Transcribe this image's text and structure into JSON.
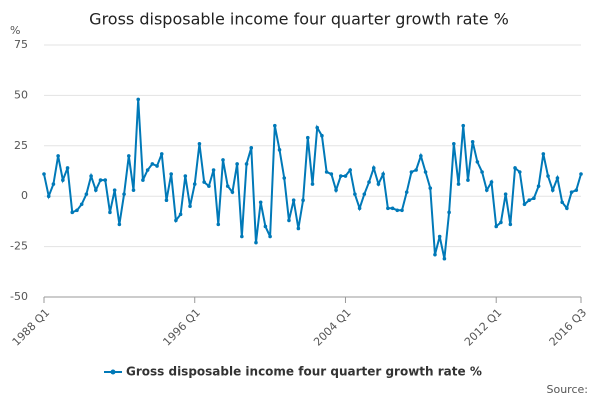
{
  "chart_data": {
    "type": "line",
    "title": "Gross disposable income four quarter growth rate %",
    "y_label": "%",
    "source": "Source:",
    "categories": [
      "1988 Q1",
      null,
      null,
      null,
      null,
      null,
      null,
      null,
      null,
      null,
      null,
      null,
      null,
      null,
      null,
      null,
      null,
      null,
      null,
      null,
      null,
      null,
      null,
      null,
      null,
      null,
      null,
      null,
      null,
      null,
      null,
      null,
      "1996 Q1",
      null,
      null,
      null,
      null,
      null,
      null,
      null,
      null,
      null,
      null,
      null,
      null,
      null,
      null,
      null,
      null,
      null,
      null,
      null,
      null,
      null,
      null,
      null,
      null,
      null,
      null,
      null,
      null,
      null,
      null,
      null,
      "2004 Q1",
      null,
      null,
      null,
      null,
      null,
      null,
      null,
      null,
      null,
      null,
      null,
      null,
      null,
      null,
      null,
      null,
      null,
      null,
      null,
      null,
      null,
      null,
      null,
      null,
      null,
      null,
      null,
      null,
      null,
      null,
      null,
      "2012 Q1",
      null,
      null,
      null,
      null,
      null,
      null,
      null,
      null,
      null,
      null,
      null,
      null,
      null,
      null,
      null,
      null,
      null,
      "2016 Q3"
    ],
    "series": [
      {
        "name": "Gross disposable income four quarter growth rate %",
        "color": "#0079b8",
        "values": [
          11,
          0,
          6,
          20,
          8,
          14,
          -8,
          -7,
          -4,
          1,
          10,
          3,
          8,
          8,
          -8,
          3,
          -14,
          1,
          20,
          3,
          48,
          8,
          13,
          16,
          15,
          21,
          -2,
          11,
          -12,
          -9,
          10,
          -5,
          6,
          26,
          7,
          5,
          13,
          -14,
          18,
          5,
          2,
          16,
          -20,
          16,
          24,
          -23,
          -3,
          -15,
          -20,
          35,
          23,
          9,
          -12,
          -2,
          -16,
          -2,
          29,
          6,
          34,
          30,
          12,
          11,
          3,
          10,
          10,
          13,
          1,
          -6,
          1,
          7,
          14,
          6,
          11,
          -6,
          -6,
          -7,
          -7,
          2,
          12,
          13,
          20,
          12,
          4,
          -29,
          -20,
          -31,
          -8,
          26,
          6,
          35,
          8,
          27,
          17,
          12,
          3,
          7,
          -15,
          -13,
          1,
          -14,
          14,
          12,
          -4,
          -2,
          -1,
          5,
          21,
          10,
          3,
          9,
          -3,
          -6,
          2,
          3,
          11
        ]
      }
    ],
    "ylim": [
      -50,
      75
    ],
    "yticks": [
      -50,
      -25,
      0,
      25,
      50,
      75
    ],
    "grid": true
  }
}
